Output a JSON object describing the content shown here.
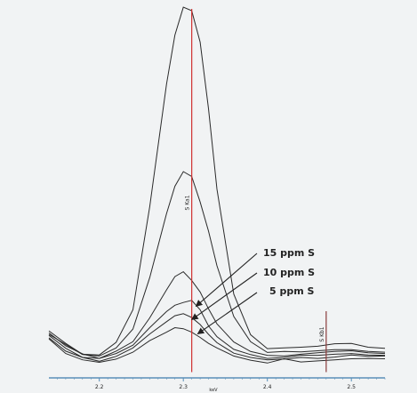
{
  "chart_data": {
    "type": "line",
    "xlabel": "keV",
    "ylabel": "",
    "xlim": [
      2.14,
      2.54
    ],
    "ylim": [
      0,
      100
    ],
    "x_ticks": [
      {
        "value": 2.2,
        "label": "2.2"
      },
      {
        "value": 2.3,
        "label": "2.3"
      },
      {
        "value": 2.4,
        "label": "2.4"
      },
      {
        "value": 2.5,
        "label": "2.5"
      }
    ],
    "markers": [
      {
        "value": 2.31,
        "label": "S Ka1",
        "color": "#d03030"
      },
      {
        "value": 2.47,
        "label": "S Kb1",
        "color": "#8a3b3b"
      }
    ],
    "annotations": [
      {
        "text": "15 ppm S",
        "target_x": 2.315,
        "target_y": 15.5
      },
      {
        "text": "10 ppm S",
        "target_x": 2.31,
        "target_y": 11.7
      },
      {
        "text": "5 ppm S",
        "target_x": 2.317,
        "target_y": 7.6
      }
    ],
    "x": [
      2.14,
      2.16,
      2.18,
      2.2,
      2.22,
      2.24,
      2.26,
      2.28,
      2.29,
      2.3,
      2.31,
      2.32,
      2.33,
      2.34,
      2.36,
      2.38,
      2.4,
      2.42,
      2.44,
      2.46,
      2.48,
      2.5,
      2.52,
      2.54
    ],
    "series": [
      {
        "values": [
          8.5,
          4.9,
          1.8,
          1.6,
          5.2,
          14.5,
          44,
          79,
          93,
          101,
          100,
          91,
          72,
          49,
          19,
          7.4,
          3.4,
          3.6,
          3.8,
          4.1,
          4.8,
          4.9,
          3.8,
          3.5
        ]
      },
      {
        "values": [
          7.5,
          4.6,
          1.7,
          1.3,
          3.6,
          9,
          23.7,
          42,
          49.8,
          54,
          52.6,
          45.3,
          37,
          27.1,
          12.6,
          5.4,
          2.3,
          2.6,
          2.5,
          2.8,
          3.1,
          3.1,
          2.6,
          2.4
        ]
      },
      {
        "values": [
          7.9,
          4.2,
          1.9,
          0.6,
          2.7,
          5.4,
          12.2,
          20.2,
          24,
          25.4,
          22.9,
          19.6,
          14.8,
          10.5,
          5.3,
          2.6,
          1.5,
          1.3,
          1.8,
          2.2,
          2.6,
          2.8,
          2.2,
          2
        ]
      },
      {
        "values": [
          7.2,
          3.5,
          0.9,
          0.6,
          2,
          4.4,
          9.4,
          14,
          15.8,
          16.6,
          17.2,
          14.5,
          9.9,
          6.8,
          3.2,
          1.7,
          0.6,
          0.9,
          1.5,
          1.5,
          1.8,
          2,
          1.6,
          1.5
        ]
      },
      {
        "values": [
          6.5,
          2.7,
          0.9,
          -0.2,
          1.2,
          3.6,
          7.6,
          11.1,
          12.8,
          13.4,
          12.3,
          10.3,
          7.5,
          5.1,
          2.1,
          0.9,
          0.2,
          0.4,
          0.9,
          0.6,
          1,
          1.6,
          1.2,
          1.3
        ]
      },
      {
        "values": [
          6.2,
          2,
          0.2,
          -0.5,
          0.4,
          2.4,
          5.7,
          8.1,
          9.4,
          9.1,
          8.1,
          6.6,
          4.9,
          3.6,
          1.3,
          0.1,
          -0.7,
          0.5,
          -0.4,
          -0.1,
          0.2,
          0.5,
          0.6,
          0.5
        ]
      }
    ]
  }
}
